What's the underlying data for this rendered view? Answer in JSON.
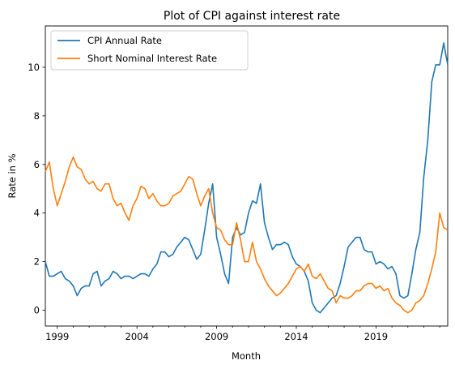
{
  "chart_data": {
    "type": "line",
    "title": "Plot of CPI against interest rate",
    "xlabel": "Month",
    "ylabel": "Rate in %",
    "xlim": [
      1998.25,
      2023.5
    ],
    "ylim": [
      -0.65,
      11.7
    ],
    "x_ticks": [
      {
        "value": 1999,
        "label": "1999"
      },
      {
        "value": 2004,
        "label": "2004"
      },
      {
        "value": 2009,
        "label": "2009"
      },
      {
        "value": 2014,
        "label": "2014"
      },
      {
        "value": 2019,
        "label": "2019"
      }
    ],
    "y_ticks": [
      {
        "value": 0,
        "label": "0"
      },
      {
        "value": 2,
        "label": "2"
      },
      {
        "value": 4,
        "label": "4"
      },
      {
        "value": 6,
        "label": "6"
      },
      {
        "value": 8,
        "label": "8"
      },
      {
        "value": 10,
        "label": "10"
      }
    ],
    "grid": false,
    "legend_position": "top-left",
    "series": [
      {
        "name": "CPI Annual Rate",
        "color": "#1f77b4",
        "x": [
          1998.25,
          1998.5,
          1998.75,
          1999.0,
          1999.25,
          1999.5,
          1999.75,
          2000.0,
          2000.25,
          2000.5,
          2000.75,
          2001.0,
          2001.25,
          2001.5,
          2001.75,
          2002.0,
          2002.25,
          2002.5,
          2002.75,
          2003.0,
          2003.25,
          2003.5,
          2003.75,
          2004.0,
          2004.25,
          2004.5,
          2004.75,
          2005.0,
          2005.25,
          2005.5,
          2005.75,
          2006.0,
          2006.25,
          2006.5,
          2006.75,
          2007.0,
          2007.25,
          2007.5,
          2007.75,
          2008.0,
          2008.25,
          2008.5,
          2008.75,
          2009.0,
          2009.25,
          2009.5,
          2009.75,
          2010.0,
          2010.25,
          2010.5,
          2010.75,
          2011.0,
          2011.25,
          2011.5,
          2011.75,
          2012.0,
          2012.25,
          2012.5,
          2012.75,
          2013.0,
          2013.25,
          2013.5,
          2013.75,
          2014.0,
          2014.25,
          2014.5,
          2014.75,
          2015.0,
          2015.25,
          2015.5,
          2015.75,
          2016.0,
          2016.25,
          2016.5,
          2016.75,
          2017.0,
          2017.25,
          2017.5,
          2017.75,
          2018.0,
          2018.25,
          2018.5,
          2018.75,
          2019.0,
          2019.25,
          2019.5,
          2019.75,
          2020.0,
          2020.25,
          2020.5,
          2020.75,
          2021.0,
          2021.25,
          2021.5,
          2021.75,
          2022.0,
          2022.25,
          2022.5,
          2022.75,
          2023.0,
          2023.25,
          2023.5
        ],
        "values": [
          2.0,
          1.4,
          1.4,
          1.5,
          1.6,
          1.3,
          1.2,
          1.0,
          0.6,
          0.9,
          1.0,
          1.0,
          1.5,
          1.6,
          1.0,
          1.2,
          1.3,
          1.6,
          1.5,
          1.3,
          1.4,
          1.4,
          1.3,
          1.4,
          1.5,
          1.5,
          1.4,
          1.7,
          1.9,
          2.4,
          2.4,
          2.2,
          2.3,
          2.6,
          2.8,
          3.0,
          2.9,
          2.5,
          2.1,
          2.3,
          3.3,
          4.4,
          5.2,
          3.0,
          2.3,
          1.5,
          1.1,
          3.0,
          3.4,
          3.1,
          3.2,
          4.0,
          4.5,
          4.4,
          5.2,
          3.6,
          3.0,
          2.5,
          2.7,
          2.7,
          2.8,
          2.7,
          2.2,
          1.9,
          1.8,
          1.6,
          1.2,
          0.3,
          0.0,
          -0.1,
          0.1,
          0.3,
          0.5,
          0.6,
          1.1,
          1.8,
          2.6,
          2.8,
          3.0,
          3.0,
          2.5,
          2.4,
          2.4,
          1.9,
          2.0,
          1.9,
          1.7,
          1.8,
          1.5,
          0.6,
          0.5,
          0.6,
          1.5,
          2.5,
          3.2,
          5.5,
          7.0,
          9.4,
          10.1,
          10.1,
          11.0,
          10.1
        ]
      },
      {
        "name": "Short Nominal Interest Rate",
        "color": "#ff7f0e",
        "x": [
          1998.25,
          1998.5,
          1998.75,
          1999.0,
          1999.25,
          1999.5,
          1999.75,
          2000.0,
          2000.25,
          2000.5,
          2000.75,
          2001.0,
          2001.25,
          2001.5,
          2001.75,
          2002.0,
          2002.25,
          2002.5,
          2002.75,
          2003.0,
          2003.25,
          2003.5,
          2003.75,
          2004.0,
          2004.25,
          2004.5,
          2004.75,
          2005.0,
          2005.25,
          2005.5,
          2005.75,
          2006.0,
          2006.25,
          2006.5,
          2006.75,
          2007.0,
          2007.25,
          2007.5,
          2007.75,
          2008.0,
          2008.25,
          2008.5,
          2008.75,
          2009.0,
          2009.25,
          2009.5,
          2009.75,
          2010.0,
          2010.25,
          2010.5,
          2010.75,
          2011.0,
          2011.25,
          2011.5,
          2011.75,
          2012.0,
          2012.25,
          2012.5,
          2012.75,
          2013.0,
          2013.25,
          2013.5,
          2013.75,
          2014.0,
          2014.25,
          2014.5,
          2014.75,
          2015.0,
          2015.25,
          2015.5,
          2015.75,
          2016.0,
          2016.25,
          2016.5,
          2016.75,
          2017.0,
          2017.25,
          2017.5,
          2017.75,
          2018.0,
          2018.25,
          2018.5,
          2018.75,
          2019.0,
          2019.25,
          2019.5,
          2019.75,
          2020.0,
          2020.25,
          2020.5,
          2020.75,
          2021.0,
          2021.25,
          2021.5,
          2021.75,
          2022.0,
          2022.25,
          2022.5,
          2022.75,
          2023.0,
          2023.25,
          2023.5
        ],
        "values": [
          5.7,
          6.1,
          5.0,
          4.3,
          4.8,
          5.3,
          5.9,
          6.3,
          5.9,
          5.8,
          5.4,
          5.2,
          5.3,
          5.0,
          4.9,
          5.2,
          5.2,
          4.6,
          4.3,
          4.4,
          4.0,
          3.7,
          4.3,
          4.6,
          5.1,
          5.0,
          4.6,
          4.8,
          4.5,
          4.3,
          4.3,
          4.4,
          4.7,
          4.8,
          4.9,
          5.2,
          5.5,
          5.4,
          4.8,
          4.3,
          4.7,
          5.0,
          4.0,
          3.4,
          3.3,
          2.9,
          2.7,
          2.7,
          3.6,
          2.9,
          2.0,
          2.0,
          2.8,
          2.0,
          1.7,
          1.3,
          1.0,
          0.8,
          0.6,
          0.7,
          0.9,
          1.1,
          1.4,
          1.7,
          1.8,
          1.6,
          1.9,
          1.4,
          1.3,
          1.5,
          1.2,
          0.9,
          0.8,
          0.3,
          0.6,
          0.5,
          0.5,
          0.6,
          0.8,
          0.8,
          1.0,
          1.1,
          1.1,
          0.9,
          1.0,
          0.8,
          0.9,
          0.5,
          0.3,
          0.2,
          0.0,
          -0.1,
          0.0,
          0.3,
          0.4,
          0.6,
          1.1,
          1.7,
          2.4,
          4.0,
          3.4,
          3.3
        ]
      }
    ]
  }
}
